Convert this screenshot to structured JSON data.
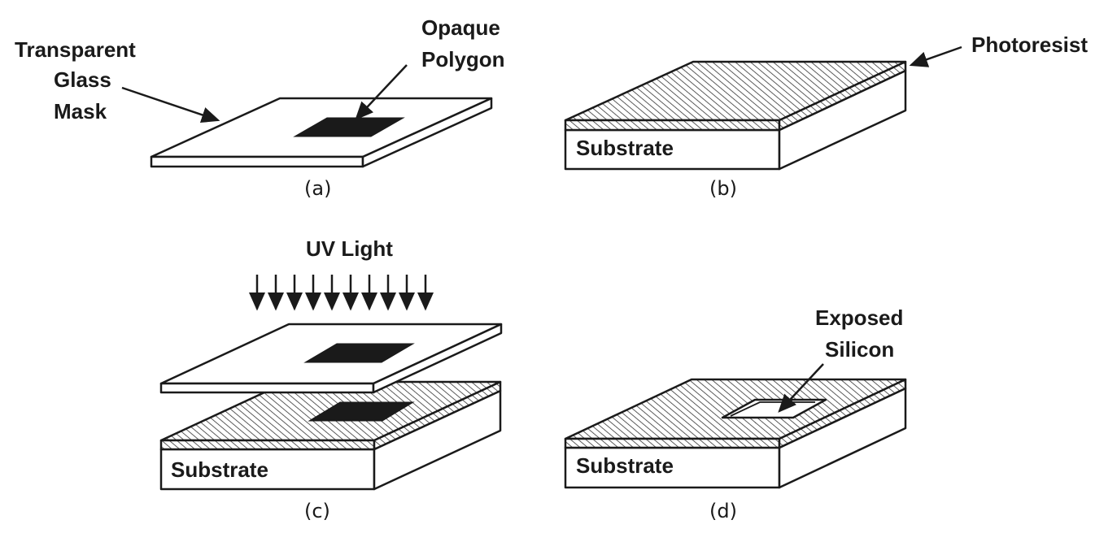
{
  "panel_a": {
    "caption": "(a)",
    "label_mask_line1": "Transparent",
    "label_mask_line2": "Glass",
    "label_mask_line3": "Mask",
    "label_polygon_line1": "Opaque",
    "label_polygon_line2": "Polygon"
  },
  "panel_b": {
    "caption": "(b)",
    "label_photoresist": "Photoresist",
    "substrate": "Substrate"
  },
  "panel_c": {
    "caption": "(c)",
    "label_uv": "UV Light",
    "substrate": "Substrate"
  },
  "panel_d": {
    "caption": "(d)",
    "label_exposed_line1": "Exposed",
    "label_exposed_line2": "Silicon",
    "substrate": "Substrate"
  }
}
